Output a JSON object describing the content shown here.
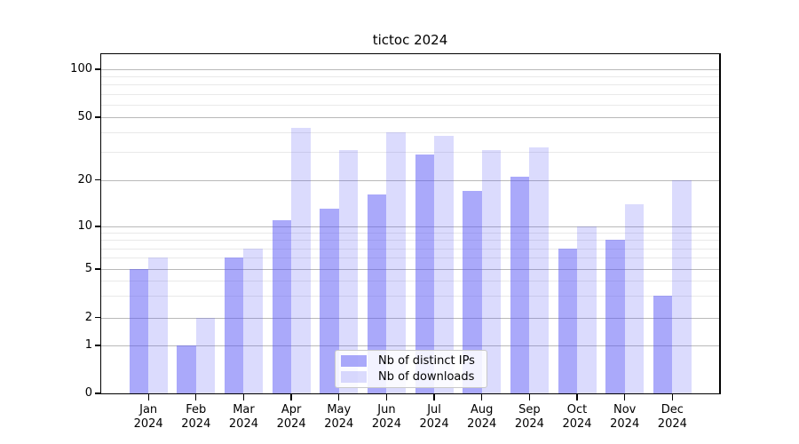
{
  "title": "tictoc 2024",
  "legend": {
    "items": [
      {
        "label": "Nb of distinct IPs",
        "color": "rgba(85,83,245,0.5)"
      },
      {
        "label": "Nb of downloads",
        "color": "rgba(85,83,245,0.21)"
      }
    ]
  },
  "chart_data": {
    "type": "bar",
    "title": "tictoc 2024",
    "categories": [
      "Jan 2024",
      "Feb 2024",
      "Mar 2024",
      "Apr 2024",
      "May 2024",
      "Jun 2024",
      "Jul 2024",
      "Aug 2024",
      "Sep 2024",
      "Oct 2024",
      "Nov 2024",
      "Dec 2024"
    ],
    "series": [
      {
        "name": "Nb of distinct IPs",
        "color": "rgba(85,83,245,0.5)",
        "values": [
          5,
          1,
          6,
          11,
          13,
          16,
          29,
          17,
          21,
          7,
          8,
          3
        ]
      },
      {
        "name": "Nb of downloads",
        "color": "rgba(85,83,245,0.21)",
        "values": [
          6,
          2,
          7,
          43,
          31,
          40,
          38,
          31,
          32,
          10,
          14,
          20
        ]
      }
    ],
    "xlabel": "",
    "ylabel": "",
    "yscale": "log-like",
    "ylim": [
      0,
      130
    ],
    "yticks": [
      0,
      1,
      2,
      5,
      10,
      20,
      50,
      100
    ],
    "minor_gridlines": [
      3,
      4,
      6,
      7,
      8,
      9,
      30,
      40,
      60,
      70,
      80,
      90
    ],
    "grid": true,
    "grid_color_major": "#b9b9b9",
    "grid_color_minor": "#e9e9e9",
    "legend_position": "lower center"
  }
}
